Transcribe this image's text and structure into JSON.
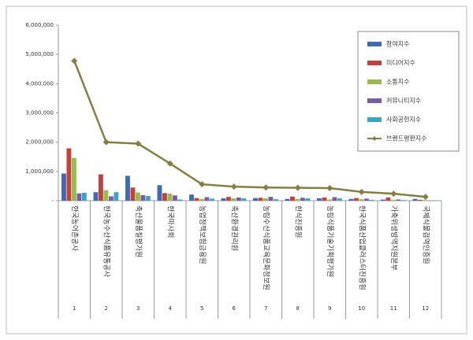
{
  "chart_data": {
    "type": "bar",
    "categories": [
      "한국농어촌공사",
      "한국농수산식품유통공사",
      "축산물품질평가원",
      "한국마사회",
      "농업정책보험금융원",
      "축산환경관리원",
      "농림수산식품교육문화정보원",
      "한식진흥원",
      "농림식품기술기획평가원",
      "한국식품산업클러스터진흥원",
      "가축위생방역지원본부",
      "국제식물검역인증원"
    ],
    "category_numbers": [
      1,
      2,
      3,
      4,
      5,
      6,
      7,
      8,
      9,
      10,
      11,
      12
    ],
    "series": [
      {
        "name": "참여지수",
        "color": "#3d6ab3",
        "values": [
          930000,
          290000,
          850000,
          530000,
          210000,
          80000,
          90000,
          60000,
          80000,
          60000,
          40000,
          60000
        ]
      },
      {
        "name": "미디어지수",
        "color": "#c0413d",
        "values": [
          1790000,
          900000,
          450000,
          260000,
          90000,
          130000,
          100000,
          140000,
          110000,
          90000,
          110000,
          30000
        ]
      },
      {
        "name": "소통지수",
        "color": "#99bb4a",
        "values": [
          1460000,
          360000,
          280000,
          240000,
          60000,
          80000,
          80000,
          60000,
          40000,
          50000,
          30000,
          20000
        ]
      },
      {
        "name": "커뮤니티지수",
        "color": "#7b5ba3",
        "values": [
          250000,
          150000,
          190000,
          180000,
          120000,
          110000,
          130000,
          100000,
          120000,
          70000,
          40000,
          10000
        ]
      },
      {
        "name": "사회공헌지수",
        "color": "#3aa6c2",
        "values": [
          270000,
          290000,
          160000,
          40000,
          70000,
          80000,
          50000,
          80000,
          80000,
          30000,
          20000,
          10000
        ]
      },
      {
        "name": "브랜드평판지수",
        "color": "#857e45",
        "type": "line",
        "values": [
          4780000,
          2000000,
          1950000,
          1270000,
          560000,
          480000,
          450000,
          440000,
          430000,
          300000,
          240000,
          130000
        ]
      }
    ],
    "ylim": [
      0,
      6000000
    ],
    "yticks": [
      {
        "value": 0,
        "label": "-"
      },
      {
        "value": 1000000,
        "label": "1,000,000"
      },
      {
        "value": 2000000,
        "label": "2,000,000"
      },
      {
        "value": 3000000,
        "label": "3,000,000"
      },
      {
        "value": 4000000,
        "label": "4,000,000"
      },
      {
        "value": 5000000,
        "label": "5,000,000"
      },
      {
        "value": 6000000,
        "label": "6,000,000"
      }
    ],
    "grid": false
  }
}
